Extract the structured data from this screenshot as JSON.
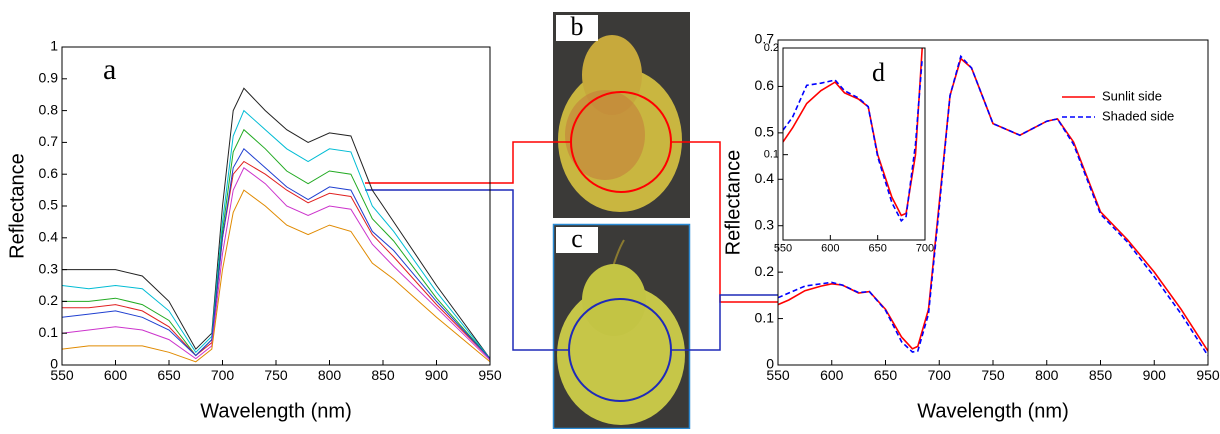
{
  "chart_data": [
    {
      "type": "line",
      "annotation": "a",
      "xlabel": "Wavelength (nm)",
      "ylabel": "Reflectance",
      "x": [
        550,
        575,
        600,
        625,
        650,
        675,
        690,
        700,
        710,
        720,
        740,
        760,
        780,
        800,
        820,
        840,
        860,
        900,
        950
      ],
      "series": [
        {
          "color": "#222222",
          "values": [
            0.3,
            0.3,
            0.3,
            0.28,
            0.2,
            0.05,
            0.1,
            0.5,
            0.8,
            0.87,
            0.8,
            0.74,
            0.7,
            0.73,
            0.72,
            0.55,
            0.45,
            0.25,
            0.02
          ]
        },
        {
          "color": "#00bcd4",
          "values": [
            0.25,
            0.24,
            0.25,
            0.24,
            0.17,
            0.04,
            0.09,
            0.45,
            0.72,
            0.8,
            0.74,
            0.68,
            0.64,
            0.68,
            0.67,
            0.5,
            0.42,
            0.23,
            0.02
          ]
        },
        {
          "color": "#22aa22",
          "values": [
            0.2,
            0.2,
            0.21,
            0.19,
            0.14,
            0.03,
            0.08,
            0.42,
            0.67,
            0.74,
            0.68,
            0.61,
            0.57,
            0.61,
            0.6,
            0.46,
            0.39,
            0.21,
            0.02
          ]
        },
        {
          "color": "#e02020",
          "values": [
            0.18,
            0.18,
            0.19,
            0.17,
            0.12,
            0.03,
            0.07,
            0.4,
            0.6,
            0.64,
            0.6,
            0.55,
            0.51,
            0.54,
            0.53,
            0.41,
            0.34,
            0.19,
            0.02
          ]
        },
        {
          "color": "#1f3fd0",
          "values": [
            0.15,
            0.16,
            0.17,
            0.15,
            0.11,
            0.03,
            0.08,
            0.4,
            0.62,
            0.68,
            0.62,
            0.56,
            0.52,
            0.56,
            0.55,
            0.42,
            0.36,
            0.2,
            0.02
          ]
        },
        {
          "color": "#cc33cc",
          "values": [
            0.1,
            0.11,
            0.12,
            0.11,
            0.08,
            0.02,
            0.06,
            0.35,
            0.55,
            0.62,
            0.57,
            0.5,
            0.47,
            0.5,
            0.49,
            0.38,
            0.31,
            0.18,
            0.015
          ]
        },
        {
          "color": "#e08a00",
          "values": [
            0.05,
            0.06,
            0.06,
            0.06,
            0.04,
            0.01,
            0.05,
            0.3,
            0.48,
            0.55,
            0.5,
            0.44,
            0.41,
            0.44,
            0.42,
            0.32,
            0.27,
            0.15,
            0.01
          ]
        }
      ],
      "xlim": [
        550,
        950
      ],
      "xticks": [
        550,
        600,
        650,
        700,
        750,
        800,
        850,
        900,
        950
      ],
      "ylim": [
        0,
        1
      ],
      "yticks": [
        0,
        0.1,
        0.2,
        0.3,
        0.4,
        0.5,
        0.6,
        0.7,
        0.8,
        0.9,
        1
      ]
    },
    {
      "type": "line",
      "xlabel": "Wavelength (nm)",
      "ylabel": "Reflectance",
      "legend": "upper right",
      "x": [
        550,
        560,
        575,
        590,
        600,
        610,
        625,
        635,
        650,
        665,
        675,
        680,
        690,
        700,
        710,
        720,
        730,
        750,
        775,
        800,
        810,
        825,
        850,
        875,
        900,
        925,
        950
      ],
      "series": [
        {
          "name": "Sunlit side",
          "color": "#ff0000",
          "dash": false,
          "values": [
            0.13,
            0.14,
            0.16,
            0.17,
            0.175,
            0.172,
            0.155,
            0.158,
            0.12,
            0.06,
            0.035,
            0.04,
            0.12,
            0.35,
            0.58,
            0.66,
            0.64,
            0.52,
            0.495,
            0.525,
            0.53,
            0.48,
            0.33,
            0.27,
            0.2,
            0.12,
            0.03
          ]
        },
        {
          "name": "Shaded side",
          "color": "#0000ff",
          "dash": true,
          "values": [
            0.145,
            0.155,
            0.17,
            0.175,
            0.178,
            0.172,
            0.156,
            0.158,
            0.118,
            0.05,
            0.028,
            0.03,
            0.11,
            0.34,
            0.58,
            0.665,
            0.64,
            0.52,
            0.495,
            0.525,
            0.53,
            0.475,
            0.325,
            0.265,
            0.19,
            0.11,
            0.02
          ]
        }
      ],
      "xlim": [
        550,
        950
      ],
      "xticks": [
        550,
        600,
        650,
        700,
        750,
        800,
        850,
        900,
        950
      ],
      "ylim": [
        0,
        0.7
      ],
      "yticks": [
        0,
        0.1,
        0.2,
        0.3,
        0.4,
        0.5,
        0.6,
        0.7
      ]
    },
    {
      "type": "line",
      "annotation": "d",
      "x": [
        550,
        560,
        575,
        590,
        605,
        615,
        630,
        640,
        650,
        665,
        675,
        680,
        690,
        697
      ],
      "series": [
        {
          "color": "#ff0000",
          "dash": false,
          "values": [
            0.112,
            0.125,
            0.148,
            0.16,
            0.168,
            0.158,
            0.152,
            0.145,
            0.1,
            0.06,
            0.043,
            0.045,
            0.1,
            0.2
          ]
        },
        {
          "color": "#0000ff",
          "dash": true,
          "values": [
            0.123,
            0.135,
            0.165,
            0.167,
            0.17,
            0.16,
            0.153,
            0.145,
            0.098,
            0.055,
            0.038,
            0.042,
            0.11,
            0.19
          ]
        }
      ],
      "xlim": [
        550,
        700
      ],
      "xticks": [
        550,
        600,
        650,
        700
      ],
      "ylim": [
        0.02,
        0.2
      ],
      "yticks": [
        0.1,
        0.2
      ]
    }
  ],
  "photo_labels": [
    "b",
    "c"
  ]
}
